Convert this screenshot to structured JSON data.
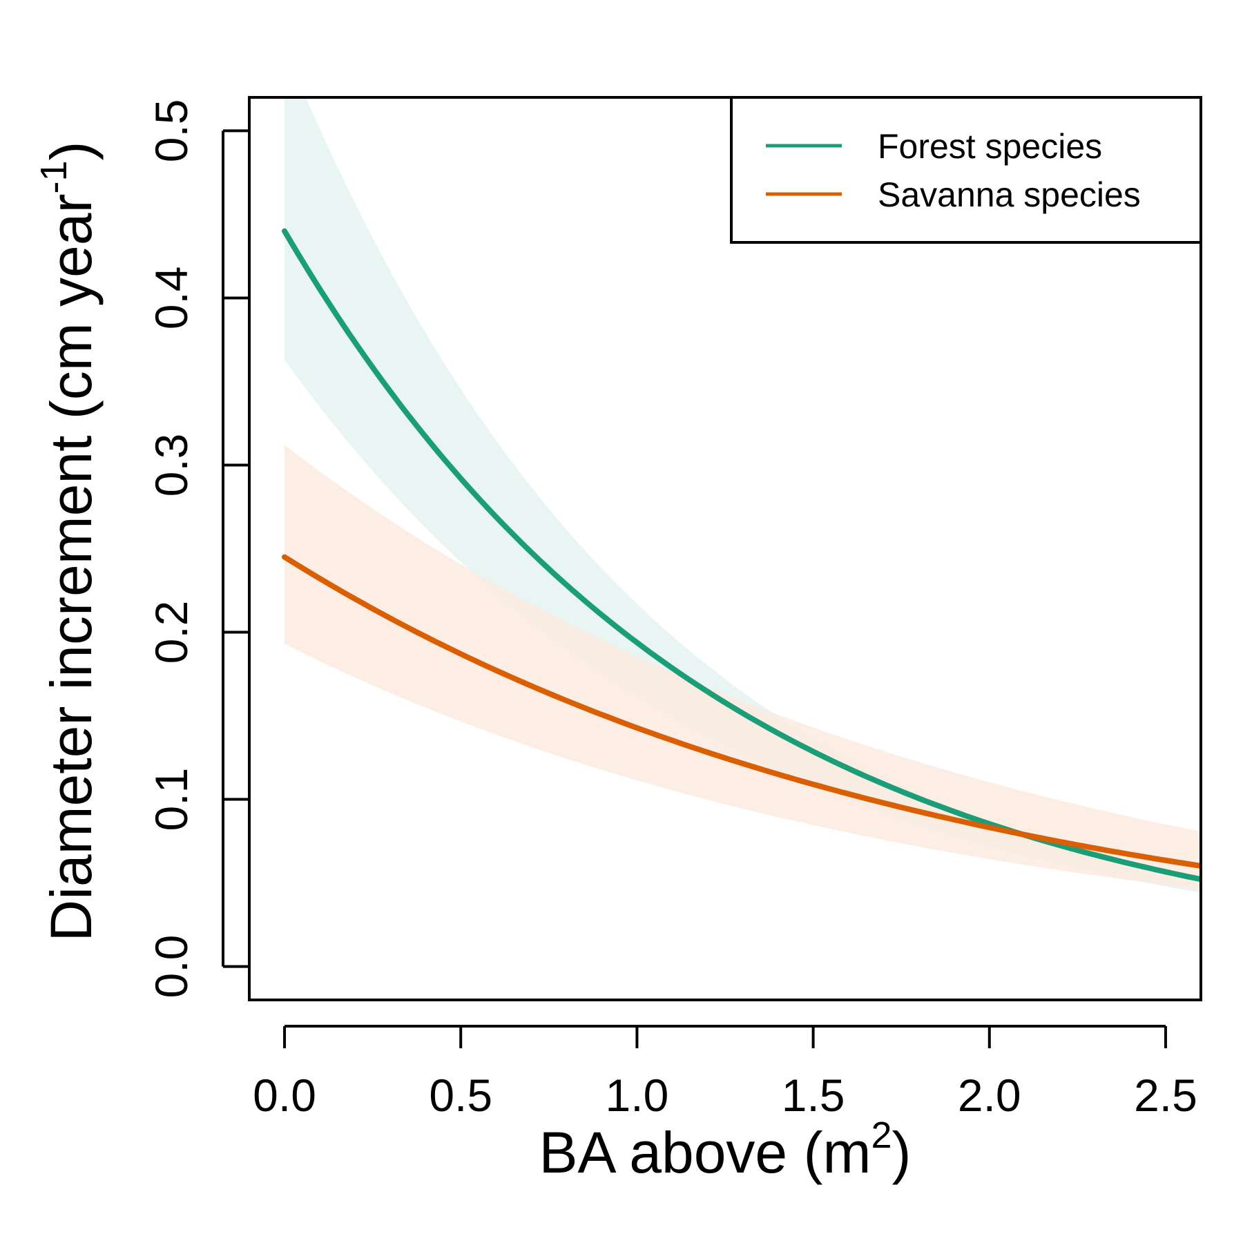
{
  "chart_data": {
    "type": "line",
    "xlabel": "BA above (m",
    "xlabel_sup": "2",
    "xlabel_end": ")",
    "ylabel": "Diameter increment (cm year",
    "ylabel_sup": "-1",
    "ylabel_end": ")",
    "xlim": [
      -0.1,
      2.6
    ],
    "ylim": [
      -0.02,
      0.52
    ],
    "xticks": [
      {
        "value": 0.0,
        "label": "0.0"
      },
      {
        "value": 0.5,
        "label": "0.5"
      },
      {
        "value": 1.0,
        "label": "1.0"
      },
      {
        "value": 1.5,
        "label": "1.5"
      },
      {
        "value": 2.0,
        "label": "2.0"
      },
      {
        "value": 2.5,
        "label": "2.5"
      }
    ],
    "yticks": [
      {
        "value": 0.0,
        "label": "0.0"
      },
      {
        "value": 0.1,
        "label": "0.1"
      },
      {
        "value": 0.2,
        "label": "0.2"
      },
      {
        "value": 0.3,
        "label": "0.3"
      },
      {
        "value": 0.4,
        "label": "0.4"
      },
      {
        "value": 0.5,
        "label": "0.5"
      }
    ],
    "grid": false,
    "legend_position": "top-right",
    "x_range": [
      0.0,
      2.6
    ],
    "series": [
      {
        "name": "Forest species",
        "color": "#1b9e77",
        "band_color": "#e3f3ef",
        "model": "exponential",
        "fit": {
          "intercept": 0.44,
          "slope": -0.82
        },
        "ci_lower": {
          "intercept": 0.363,
          "slope": -0.81
        },
        "ci_upper": {
          "intercept": 0.55,
          "slope": -0.93
        }
      },
      {
        "name": "Savanna species",
        "color": "#d95f02",
        "band_color": "#fbeadf",
        "model": "exponential",
        "fit": {
          "intercept": 0.245,
          "slope": -0.54
        },
        "ci_lower": {
          "intercept": 0.193,
          "slope": -0.55
        },
        "ci_upper": {
          "intercept": 0.312,
          "slope": -0.52
        }
      }
    ]
  }
}
